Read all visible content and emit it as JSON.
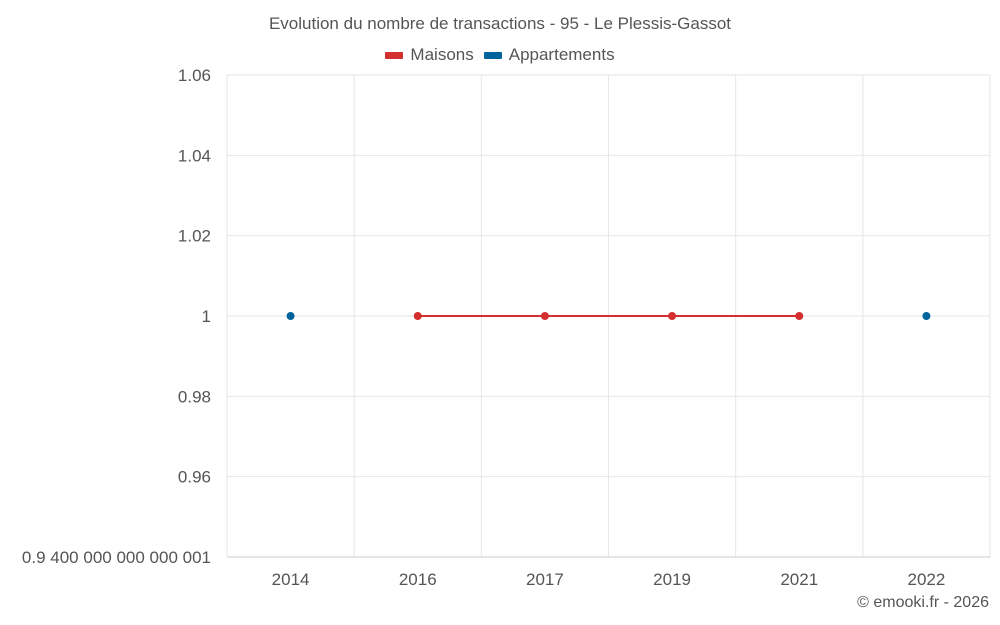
{
  "chart_data": {
    "type": "line",
    "title": "Evolution du nombre de transactions - 95 - Le Plessis-Gassot",
    "xlabel": "",
    "ylabel": "",
    "categories": [
      "2014",
      "2016",
      "2017",
      "2019",
      "2021",
      "2022"
    ],
    "y_ticks": [
      0.94,
      0.96,
      0.98,
      1,
      1.02,
      1.04,
      1.06
    ],
    "y_tick_labels": [
      "0.9 400 000 000 000 001",
      "0.96",
      "0.98",
      "1",
      "1.02",
      "1.04",
      "1.06"
    ],
    "ylim": [
      0.94,
      1.06
    ],
    "grid": true,
    "legend_position": "top-center",
    "series": [
      {
        "name": "Maisons",
        "color": "#d32f2f",
        "values": [
          null,
          1,
          1,
          1,
          1,
          null
        ]
      },
      {
        "name": "Appartements",
        "color": "#00649c",
        "values": [
          1,
          null,
          null,
          null,
          null,
          1
        ]
      }
    ]
  },
  "footer": "© emooki.fr - 2026"
}
